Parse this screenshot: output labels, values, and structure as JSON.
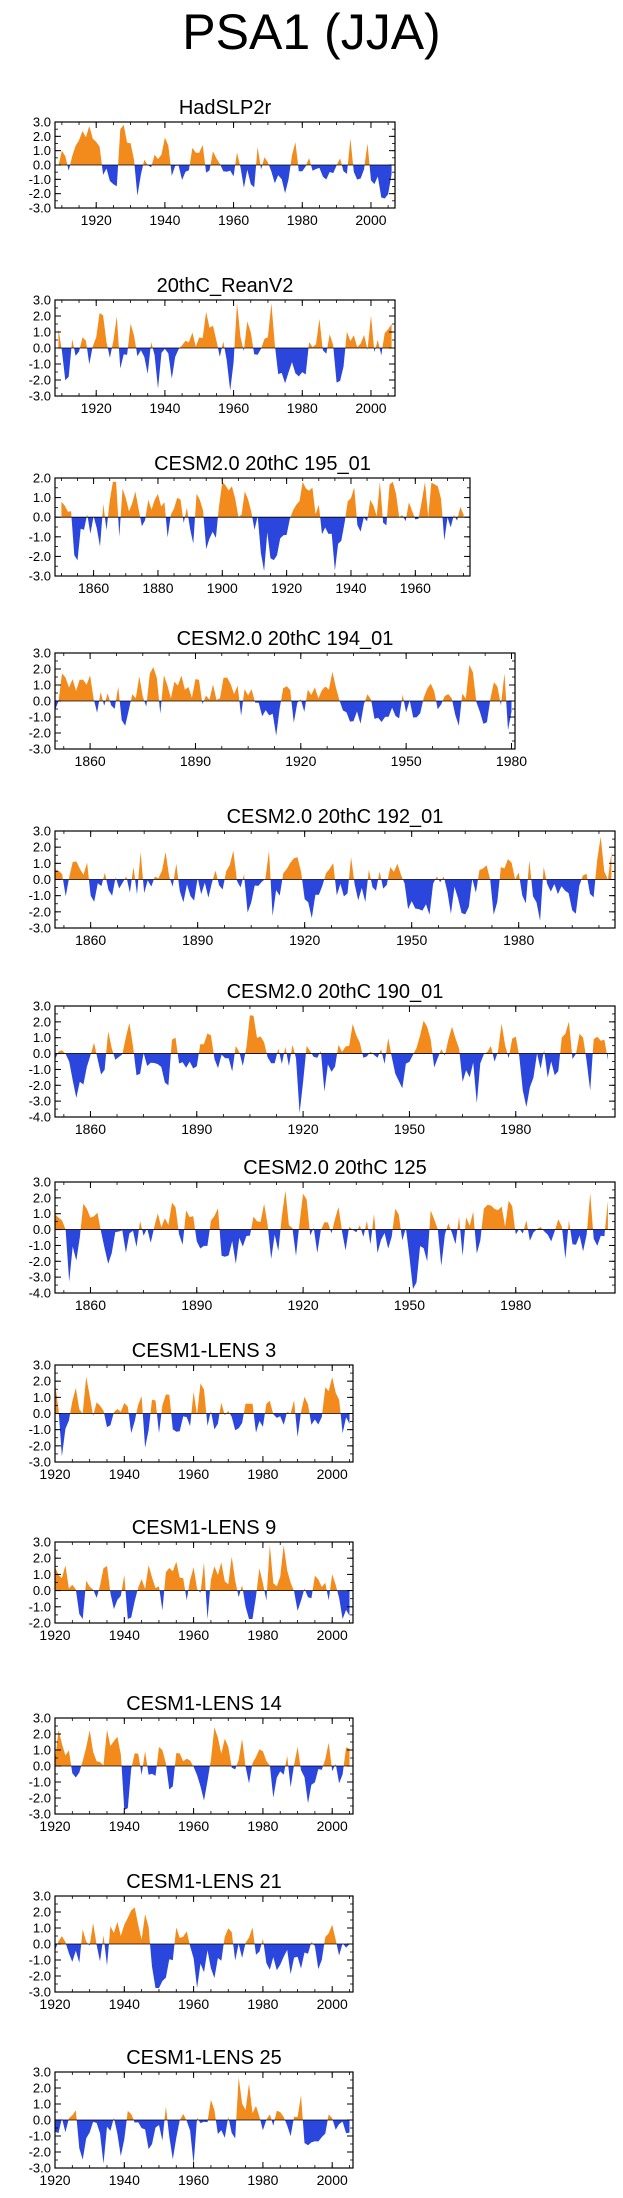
{
  "page": {
    "title": "PSA1 (JJA)"
  },
  "colors": {
    "positive": "#f28a1c",
    "negative": "#2b46dc",
    "axis": "#000000"
  },
  "chart_data": [
    {
      "type": "area",
      "title": "HadSLP2r",
      "xlim": [
        1908,
        2007
      ],
      "ylim": [
        -3.0,
        3.0
      ],
      "yticks": [
        3.0,
        2.0,
        1.0,
        0.0,
        -1.0,
        -2.0,
        -3.0
      ],
      "yticklabels": [
        "3.0",
        "2.0",
        "1.0",
        "0.0",
        "-1.0",
        "-2.0",
        "-3.0"
      ],
      "xticks": [
        1920,
        1940,
        1960,
        1980,
        2000
      ],
      "xticklabels": [
        "1920",
        "1940",
        "1960",
        "1980",
        "2000"
      ],
      "series_start": 1909,
      "series_end": 2006,
      "seed": 11,
      "amp": 1.0
    },
    {
      "type": "area",
      "title": "20thC_ReanV2",
      "xlim": [
        1908,
        2007
      ],
      "ylim": [
        -3.0,
        3.0
      ],
      "yticks": [
        3.0,
        2.0,
        1.0,
        0.0,
        -1.0,
        -2.0,
        -3.0
      ],
      "yticklabels": [
        "3.0",
        "2.0",
        "1.0",
        "0.0",
        "-1.0",
        "-2.0",
        "-3.0"
      ],
      "xticks": [
        1920,
        1940,
        1960,
        1980,
        2000
      ],
      "xticklabels": [
        "1920",
        "1940",
        "1960",
        "1980",
        "2000"
      ],
      "series_start": 1909,
      "series_end": 2006,
      "seed": 23,
      "amp": 1.1
    },
    {
      "type": "area",
      "title": "CESM2.0 20thC 195_01",
      "xlim": [
        1848,
        1977
      ],
      "ylim": [
        -3.0,
        2.0
      ],
      "yticks": [
        2.0,
        1.0,
        0.0,
        -1.0,
        -2.0,
        -3.0
      ],
      "yticklabels": [
        "2.0",
        "1.0",
        "0.0",
        "-1.0",
        "-2.0",
        "-3.0"
      ],
      "xticks": [
        1860,
        1880,
        1900,
        1920,
        1940,
        1960
      ],
      "xticklabels": [
        "1860",
        "1880",
        "1900",
        "1920",
        "1940",
        "1960"
      ],
      "series_start": 1850,
      "series_end": 1975,
      "seed": 37,
      "amp": 1.05
    },
    {
      "type": "area",
      "title": "CESM2.0 20thC 194_01",
      "xlim": [
        1850,
        1981
      ],
      "ylim": [
        -3.0,
        3.0
      ],
      "yticks": [
        3.0,
        2.0,
        1.0,
        0.0,
        -1.0,
        -2.0,
        -3.0
      ],
      "yticklabels": [
        "3.0",
        "2.0",
        "1.0",
        "0.0",
        "-1.0",
        "-2.0",
        "-3.0"
      ],
      "xticks": [
        1860,
        1890,
        1920,
        1950,
        1980
      ],
      "xticklabels": [
        "1860",
        "1890",
        "1920",
        "1950",
        "1980"
      ],
      "series_start": 1850,
      "series_end": 1980,
      "seed": 41,
      "amp": 1.0
    },
    {
      "type": "area",
      "title": "CESM2.0 20thC 192_01",
      "xlim": [
        1850,
        2007
      ],
      "ylim": [
        -3.0,
        3.0
      ],
      "yticks": [
        3.0,
        2.0,
        1.0,
        0.0,
        -1.0,
        -2.0,
        -3.0
      ],
      "yticklabels": [
        "3.0",
        "2.0",
        "1.0",
        "0.0",
        "-1.0",
        "-2.0",
        "-3.0"
      ],
      "xticks": [
        1860,
        1890,
        1920,
        1950,
        1980
      ],
      "xticklabels": [
        "1860",
        "1890",
        "1920",
        "1950",
        "1980"
      ],
      "series_start": 1850,
      "series_end": 2006,
      "seed": 53,
      "amp": 1.05
    },
    {
      "type": "area",
      "title": "CESM2.0 20thC 190_01",
      "xlim": [
        1850,
        2008
      ],
      "ylim": [
        -4.0,
        3.0
      ],
      "yticks": [
        3.0,
        2.0,
        1.0,
        0.0,
        -1.0,
        -2.0,
        -3.0,
        -4.0
      ],
      "yticklabels": [
        "3.0",
        "2.0",
        "1.0",
        "0.0",
        "-1.0",
        "-2.0",
        "-3.0",
        "-4.0"
      ],
      "xticks": [
        1860,
        1890,
        1920,
        1950,
        1980
      ],
      "xticklabels": [
        "1860",
        "1890",
        "1920",
        "1950",
        "1980"
      ],
      "series_start": 1850,
      "series_end": 2006,
      "seed": 61,
      "amp": 1.1
    },
    {
      "type": "area",
      "title": "CESM2.0 20thC 125",
      "xlim": [
        1850,
        2008
      ],
      "ylim": [
        -4.0,
        3.0
      ],
      "yticks": [
        3.0,
        2.0,
        1.0,
        0.0,
        -1.0,
        -2.0,
        -3.0,
        -4.0
      ],
      "yticklabels": [
        "3.0",
        "2.0",
        "1.0",
        "0.0",
        "-1.0",
        "-2.0",
        "-3.0",
        "-4.0"
      ],
      "xticks": [
        1860,
        1890,
        1920,
        1950,
        1980
      ],
      "xticklabels": [
        "1860",
        "1890",
        "1920",
        "1950",
        "1980"
      ],
      "series_start": 1850,
      "series_end": 2006,
      "seed": 73,
      "amp": 1.15
    },
    {
      "type": "area",
      "title": "CESM1-LENS 3",
      "xlim": [
        1920,
        2006
      ],
      "ylim": [
        -3.0,
        3.0
      ],
      "yticks": [
        3.0,
        2.0,
        1.0,
        0.0,
        -1.0,
        -2.0,
        -3.0
      ],
      "yticklabels": [
        "3.0",
        "2.0",
        "1.0",
        "0.0",
        "-1.0",
        "-2.0",
        "-3.0"
      ],
      "xticks": [
        1920,
        1940,
        1960,
        1980,
        2000
      ],
      "xticklabels": [
        "1920",
        "1940",
        "1960",
        "1980",
        "2000"
      ],
      "series_start": 1920,
      "series_end": 2005,
      "seed": 83,
      "amp": 1.05
    },
    {
      "type": "area",
      "title": "CESM1-LENS 9",
      "xlim": [
        1920,
        2006
      ],
      "ylim": [
        -2.0,
        3.0
      ],
      "yticks": [
        3.0,
        2.0,
        1.0,
        0.0,
        -1.0,
        -2.0
      ],
      "yticklabels": [
        "3.0",
        "2.0",
        "1.0",
        "0.0",
        "-1.0",
        "-2.0"
      ],
      "xticks": [
        1920,
        1940,
        1960,
        1980,
        2000
      ],
      "xticklabels": [
        "1920",
        "1940",
        "1960",
        "1980",
        "2000"
      ],
      "series_start": 1920,
      "series_end": 2005,
      "seed": 97,
      "amp": 1.0
    },
    {
      "type": "area",
      "title": "CESM1-LENS 14",
      "xlim": [
        1920,
        2006
      ],
      "ylim": [
        -3.0,
        3.0
      ],
      "yticks": [
        3.0,
        2.0,
        1.0,
        0.0,
        -1.0,
        -2.0,
        -3.0
      ],
      "yticklabels": [
        "3.0",
        "2.0",
        "1.0",
        "0.0",
        "-1.0",
        "-2.0",
        "-3.0"
      ],
      "xticks": [
        1920,
        1940,
        1960,
        1980,
        2000
      ],
      "xticklabels": [
        "1920",
        "1940",
        "1960",
        "1980",
        "2000"
      ],
      "series_start": 1920,
      "series_end": 2005,
      "seed": 101,
      "amp": 1.05
    },
    {
      "type": "area",
      "title": "CESM1-LENS 21",
      "xlim": [
        1920,
        2006
      ],
      "ylim": [
        -3.0,
        3.0
      ],
      "yticks": [
        3.0,
        2.0,
        1.0,
        0.0,
        -1.0,
        -2.0,
        -3.0
      ],
      "yticklabels": [
        "3.0",
        "2.0",
        "1.0",
        "0.0",
        "-1.0",
        "-2.0",
        "-3.0"
      ],
      "xticks": [
        1920,
        1940,
        1960,
        1980,
        2000
      ],
      "xticklabels": [
        "1920",
        "1940",
        "1960",
        "1980",
        "2000"
      ],
      "series_start": 1920,
      "series_end": 2005,
      "seed": 113,
      "amp": 1.0
    },
    {
      "type": "area",
      "title": "CESM1-LENS 25",
      "xlim": [
        1920,
        2006
      ],
      "ylim": [
        -3.0,
        3.0
      ],
      "yticks": [
        3.0,
        2.0,
        1.0,
        0.0,
        -1.0,
        -2.0,
        -3.0
      ],
      "yticklabels": [
        "3.0",
        "2.0",
        "1.0",
        "0.0",
        "-1.0",
        "-2.0",
        "-3.0"
      ],
      "xticks": [
        1920,
        1940,
        1960,
        1980,
        2000
      ],
      "xticklabels": [
        "1920",
        "1940",
        "1960",
        "1980",
        "2000"
      ],
      "series_start": 1920,
      "series_end": 2005,
      "seed": 127,
      "amp": 1.0
    }
  ]
}
